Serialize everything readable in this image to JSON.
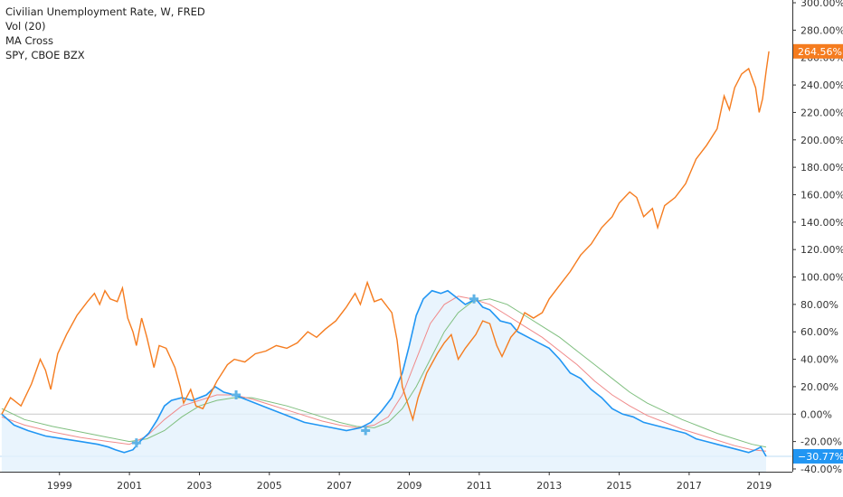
{
  "legend": {
    "line1": "Civilian Unemployment Rate, W, FRED",
    "line2": "Vol (20)",
    "line3": "MA Cross",
    "line4": "SPY, CBOE BZX"
  },
  "colors": {
    "spy": "#f57c1f",
    "unemp": "#2196f3",
    "unemp_fill": "#e3f1fd",
    "ma_fast": "#f08a8a",
    "ma_slow": "#7fbf7f",
    "cross": "#5fb3e6",
    "zero_line": "#c9c9c9",
    "axis": "#333333"
  },
  "chart_data": {
    "type": "line",
    "ylim": [
      -42,
      302
    ],
    "xlim": [
      1997.3,
      2019.95
    ],
    "yticks": [
      300,
      280,
      260,
      240,
      220,
      200,
      180,
      160,
      140,
      120,
      100,
      80,
      60,
      40,
      20,
      0,
      -20,
      -40
    ],
    "ytick_labels": [
      "300.00%",
      "280.00%",
      "260.00%",
      "240.00%",
      "220.00%",
      "200.00%",
      "180.00%",
      "160.00%",
      "140.00%",
      "120.00%",
      "100.00%",
      "80.00%",
      "60.00%",
      "40.00%",
      "20.00%",
      "0.00%",
      "-20.00%",
      "-40.00%"
    ],
    "xticks": [
      1999,
      2001,
      2003,
      2005,
      2007,
      2009,
      2011,
      2013,
      2015,
      2017,
      2019
    ],
    "xtick_labels": [
      "1999",
      "2001",
      "2003",
      "2005",
      "2007",
      "2009",
      "2011",
      "2013",
      "2015",
      "2017",
      "2019"
    ],
    "last_values": [
      {
        "series": "SPY, CBOE BZX",
        "value": 264.56,
        "label": "264.56%"
      },
      {
        "series": "Civilian Unemployment Rate, W, FRED",
        "value": -30.77,
        "label": "−30.77%"
      }
    ],
    "series": [
      {
        "name": "SPY, CBOE BZX",
        "points": [
          [
            1997.35,
            0
          ],
          [
            1997.6,
            12
          ],
          [
            1997.9,
            6
          ],
          [
            1998.2,
            22
          ],
          [
            1998.45,
            40
          ],
          [
            1998.6,
            32
          ],
          [
            1998.75,
            18
          ],
          [
            1998.95,
            44
          ],
          [
            1999.2,
            58
          ],
          [
            1999.5,
            72
          ],
          [
            1999.8,
            82
          ],
          [
            2000.0,
            88
          ],
          [
            2000.15,
            80
          ],
          [
            2000.3,
            90
          ],
          [
            2000.45,
            84
          ],
          [
            2000.65,
            82
          ],
          [
            2000.8,
            92
          ],
          [
            2000.95,
            70
          ],
          [
            2001.1,
            60
          ],
          [
            2001.2,
            50
          ],
          [
            2001.35,
            70
          ],
          [
            2001.5,
            56
          ],
          [
            2001.7,
            34
          ],
          [
            2001.85,
            50
          ],
          [
            2002.05,
            48
          ],
          [
            2002.3,
            34
          ],
          [
            2002.45,
            20
          ],
          [
            2002.55,
            8
          ],
          [
            2002.75,
            18
          ],
          [
            2002.9,
            6
          ],
          [
            2003.1,
            4
          ],
          [
            2003.3,
            14
          ],
          [
            2003.5,
            24
          ],
          [
            2003.8,
            36
          ],
          [
            2004.0,
            40
          ],
          [
            2004.3,
            38
          ],
          [
            2004.6,
            44
          ],
          [
            2004.9,
            46
          ],
          [
            2005.2,
            50
          ],
          [
            2005.5,
            48
          ],
          [
            2005.8,
            52
          ],
          [
            2006.1,
            60
          ],
          [
            2006.35,
            56
          ],
          [
            2006.6,
            62
          ],
          [
            2006.9,
            68
          ],
          [
            2007.2,
            78
          ],
          [
            2007.45,
            88
          ],
          [
            2007.6,
            80
          ],
          [
            2007.8,
            96
          ],
          [
            2008.0,
            82
          ],
          [
            2008.2,
            84
          ],
          [
            2008.5,
            74
          ],
          [
            2008.65,
            54
          ],
          [
            2008.8,
            20
          ],
          [
            2008.95,
            8
          ],
          [
            2009.1,
            -4
          ],
          [
            2009.25,
            12
          ],
          [
            2009.5,
            30
          ],
          [
            2009.8,
            44
          ],
          [
            2010.0,
            52
          ],
          [
            2010.2,
            58
          ],
          [
            2010.4,
            40
          ],
          [
            2010.6,
            48
          ],
          [
            2010.9,
            58
          ],
          [
            2011.1,
            68
          ],
          [
            2011.3,
            66
          ],
          [
            2011.5,
            50
          ],
          [
            2011.65,
            42
          ],
          [
            2011.9,
            56
          ],
          [
            2012.1,
            62
          ],
          [
            2012.3,
            74
          ],
          [
            2012.55,
            70
          ],
          [
            2012.8,
            74
          ],
          [
            2013.0,
            84
          ],
          [
            2013.3,
            94
          ],
          [
            2013.6,
            104
          ],
          [
            2013.9,
            116
          ],
          [
            2014.2,
            124
          ],
          [
            2014.5,
            136
          ],
          [
            2014.8,
            144
          ],
          [
            2015.0,
            154
          ],
          [
            2015.3,
            162
          ],
          [
            2015.5,
            158
          ],
          [
            2015.7,
            144
          ],
          [
            2015.95,
            150
          ],
          [
            2016.1,
            136
          ],
          [
            2016.3,
            152
          ],
          [
            2016.6,
            158
          ],
          [
            2016.9,
            168
          ],
          [
            2017.2,
            186
          ],
          [
            2017.5,
            196
          ],
          [
            2017.8,
            208
          ],
          [
            2018.0,
            232
          ],
          [
            2018.15,
            222
          ],
          [
            2018.3,
            238
          ],
          [
            2018.5,
            248
          ],
          [
            2018.7,
            252
          ],
          [
            2018.9,
            238
          ],
          [
            2019.0,
            220
          ],
          [
            2019.1,
            230
          ],
          [
            2019.2,
            250
          ],
          [
            2019.28,
            264.56
          ]
        ]
      },
      {
        "name": "Civilian Unemployment Rate, W, FRED",
        "points": [
          [
            1997.35,
            0
          ],
          [
            1997.7,
            -8
          ],
          [
            1998.1,
            -12
          ],
          [
            1998.6,
            -16
          ],
          [
            1999.1,
            -18
          ],
          [
            1999.6,
            -20
          ],
          [
            2000.1,
            -22
          ],
          [
            2000.4,
            -24
          ],
          [
            2000.6,
            -26
          ],
          [
            2000.85,
            -28
          ],
          [
            2001.1,
            -26
          ],
          [
            2001.3,
            -20
          ],
          [
            2001.55,
            -14
          ],
          [
            2001.8,
            -4
          ],
          [
            2002.0,
            6
          ],
          [
            2002.2,
            10
          ],
          [
            2002.5,
            12
          ],
          [
            2002.8,
            10
          ],
          [
            2003.2,
            14
          ],
          [
            2003.45,
            20
          ],
          [
            2003.7,
            16
          ],
          [
            2004.0,
            14
          ],
          [
            2004.4,
            10
          ],
          [
            2004.8,
            6
          ],
          [
            2005.2,
            2
          ],
          [
            2005.6,
            -2
          ],
          [
            2006.0,
            -6
          ],
          [
            2006.4,
            -8
          ],
          [
            2006.8,
            -10
          ],
          [
            2007.2,
            -12
          ],
          [
            2007.6,
            -10
          ],
          [
            2007.9,
            -6
          ],
          [
            2008.2,
            2
          ],
          [
            2008.5,
            12
          ],
          [
            2008.8,
            30
          ],
          [
            2009.0,
            50
          ],
          [
            2009.2,
            72
          ],
          [
            2009.4,
            84
          ],
          [
            2009.65,
            90
          ],
          [
            2009.9,
            88
          ],
          [
            2010.1,
            90
          ],
          [
            2010.3,
            86
          ],
          [
            2010.6,
            80
          ],
          [
            2010.9,
            84
          ],
          [
            2011.1,
            78
          ],
          [
            2011.3,
            76
          ],
          [
            2011.6,
            68
          ],
          [
            2011.9,
            66
          ],
          [
            2012.1,
            60
          ],
          [
            2012.4,
            56
          ],
          [
            2012.7,
            52
          ],
          [
            2013.0,
            48
          ],
          [
            2013.3,
            40
          ],
          [
            2013.6,
            30
          ],
          [
            2013.9,
            26
          ],
          [
            2014.2,
            18
          ],
          [
            2014.5,
            12
          ],
          [
            2014.8,
            4
          ],
          [
            2015.1,
            0
          ],
          [
            2015.4,
            -2
          ],
          [
            2015.7,
            -6
          ],
          [
            2016.0,
            -8
          ],
          [
            2016.3,
            -10
          ],
          [
            2016.6,
            -12
          ],
          [
            2016.9,
            -14
          ],
          [
            2017.2,
            -18
          ],
          [
            2017.5,
            -20
          ],
          [
            2017.8,
            -22
          ],
          [
            2018.1,
            -24
          ],
          [
            2018.4,
            -26
          ],
          [
            2018.7,
            -28
          ],
          [
            2018.9,
            -26
          ],
          [
            2019.05,
            -24
          ],
          [
            2019.2,
            -30.77
          ]
        ]
      },
      {
        "name": "MA fast",
        "points": [
          [
            1997.35,
            -2
          ],
          [
            1998.0,
            -8
          ],
          [
            1998.8,
            -13
          ],
          [
            1999.6,
            -17
          ],
          [
            2000.4,
            -20
          ],
          [
            2001.0,
            -22
          ],
          [
            2001.5,
            -16
          ],
          [
            2002.0,
            -4
          ],
          [
            2002.5,
            6
          ],
          [
            2003.0,
            10
          ],
          [
            2003.5,
            14
          ],
          [
            2004.0,
            14
          ],
          [
            2004.5,
            11
          ],
          [
            2005.0,
            7
          ],
          [
            2005.5,
            3
          ],
          [
            2006.0,
            -1
          ],
          [
            2006.5,
            -5
          ],
          [
            2007.0,
            -8
          ],
          [
            2007.5,
            -10
          ],
          [
            2008.0,
            -8
          ],
          [
            2008.4,
            -2
          ],
          [
            2008.8,
            14
          ],
          [
            2009.2,
            40
          ],
          [
            2009.6,
            66
          ],
          [
            2010.0,
            80
          ],
          [
            2010.4,
            86
          ],
          [
            2010.8,
            84
          ],
          [
            2011.3,
            80
          ],
          [
            2011.8,
            72
          ],
          [
            2012.3,
            64
          ],
          [
            2012.8,
            56
          ],
          [
            2013.3,
            46
          ],
          [
            2013.8,
            36
          ],
          [
            2014.3,
            24
          ],
          [
            2014.8,
            14
          ],
          [
            2015.3,
            6
          ],
          [
            2015.8,
            -1
          ],
          [
            2016.3,
            -6
          ],
          [
            2016.8,
            -11
          ],
          [
            2017.3,
            -15
          ],
          [
            2017.8,
            -19
          ],
          [
            2018.3,
            -23
          ],
          [
            2018.8,
            -26
          ],
          [
            2019.2,
            -27
          ]
        ]
      },
      {
        "name": "MA slow",
        "points": [
          [
            1997.35,
            4
          ],
          [
            1998.0,
            -4
          ],
          [
            1998.8,
            -9
          ],
          [
            1999.6,
            -13
          ],
          [
            2000.4,
            -17
          ],
          [
            2001.0,
            -20
          ],
          [
            2001.5,
            -18
          ],
          [
            2002.0,
            -12
          ],
          [
            2002.5,
            -2
          ],
          [
            2003.0,
            6
          ],
          [
            2003.5,
            10
          ],
          [
            2004.0,
            12
          ],
          [
            2004.5,
            12
          ],
          [
            2005.0,
            9
          ],
          [
            2005.5,
            6
          ],
          [
            2006.0,
            2
          ],
          [
            2006.5,
            -2
          ],
          [
            2007.0,
            -6
          ],
          [
            2007.5,
            -9
          ],
          [
            2008.0,
            -10
          ],
          [
            2008.4,
            -6
          ],
          [
            2008.8,
            4
          ],
          [
            2009.2,
            20
          ],
          [
            2009.6,
            40
          ],
          [
            2010.0,
            60
          ],
          [
            2010.4,
            74
          ],
          [
            2010.8,
            82
          ],
          [
            2011.3,
            84
          ],
          [
            2011.8,
            80
          ],
          [
            2012.3,
            72
          ],
          [
            2012.8,
            64
          ],
          [
            2013.3,
            56
          ],
          [
            2013.8,
            46
          ],
          [
            2014.3,
            36
          ],
          [
            2014.8,
            26
          ],
          [
            2015.3,
            16
          ],
          [
            2015.8,
            8
          ],
          [
            2016.3,
            2
          ],
          [
            2016.8,
            -4
          ],
          [
            2017.3,
            -9
          ],
          [
            2017.8,
            -14
          ],
          [
            2018.3,
            -18
          ],
          [
            2018.8,
            -22
          ],
          [
            2019.2,
            -24
          ]
        ]
      }
    ],
    "cross_markers": [
      [
        2001.2,
        -21
      ],
      [
        2004.05,
        14
      ],
      [
        2007.75,
        -12
      ],
      [
        2010.85,
        84
      ]
    ]
  }
}
